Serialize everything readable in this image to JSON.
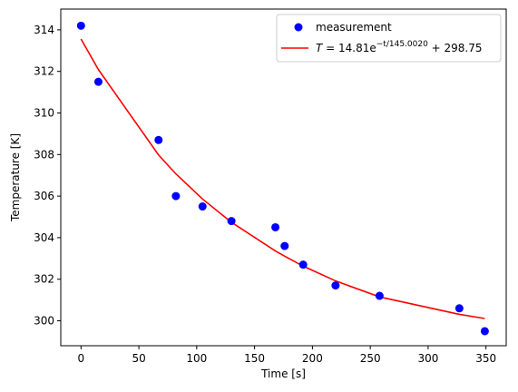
{
  "chart_data": {
    "type": "scatter",
    "xlabel": "Time [s]",
    "ylabel": "Temperature [K]",
    "xlim": [
      -17.5,
      367.5
    ],
    "ylim": [
      298.8,
      315.0
    ],
    "x_ticks": [
      0,
      50,
      100,
      150,
      200,
      250,
      300,
      350
    ],
    "y_ticks": [
      300,
      302,
      304,
      306,
      308,
      310,
      312,
      314
    ],
    "grid": false,
    "legend_position": "upper right",
    "series": [
      {
        "name": "measurement",
        "kind": "points",
        "color": "#0000ff",
        "x": [
          0,
          15,
          67,
          82,
          105,
          130,
          168,
          176,
          192,
          220,
          258,
          327,
          349
        ],
        "y": [
          314.2,
          311.5,
          308.7,
          306.0,
          305.5,
          304.8,
          304.5,
          303.6,
          302.7,
          301.7,
          301.2,
          300.6,
          299.5
        ]
      },
      {
        "name": "T = 14.81e^{-t/145.0020} + 298.75",
        "kind": "line",
        "color": "#ff0000",
        "x": [
          0,
          15,
          67,
          82,
          105,
          130,
          168,
          176,
          192,
          220,
          258,
          327,
          349
        ],
        "y": [
          313.56,
          312.09,
          307.98,
          307.07,
          305.86,
          304.74,
          303.36,
          303.11,
          302.63,
          301.92,
          301.15,
          300.31,
          300.11
        ]
      }
    ],
    "legend": {
      "measurement_label": "measurement",
      "fit_label_prefix": "T",
      "fit_label_eq": " = 14.81e",
      "fit_label_exp": "−t/145.0020",
      "fit_label_suffix": " + 298.75"
    }
  }
}
